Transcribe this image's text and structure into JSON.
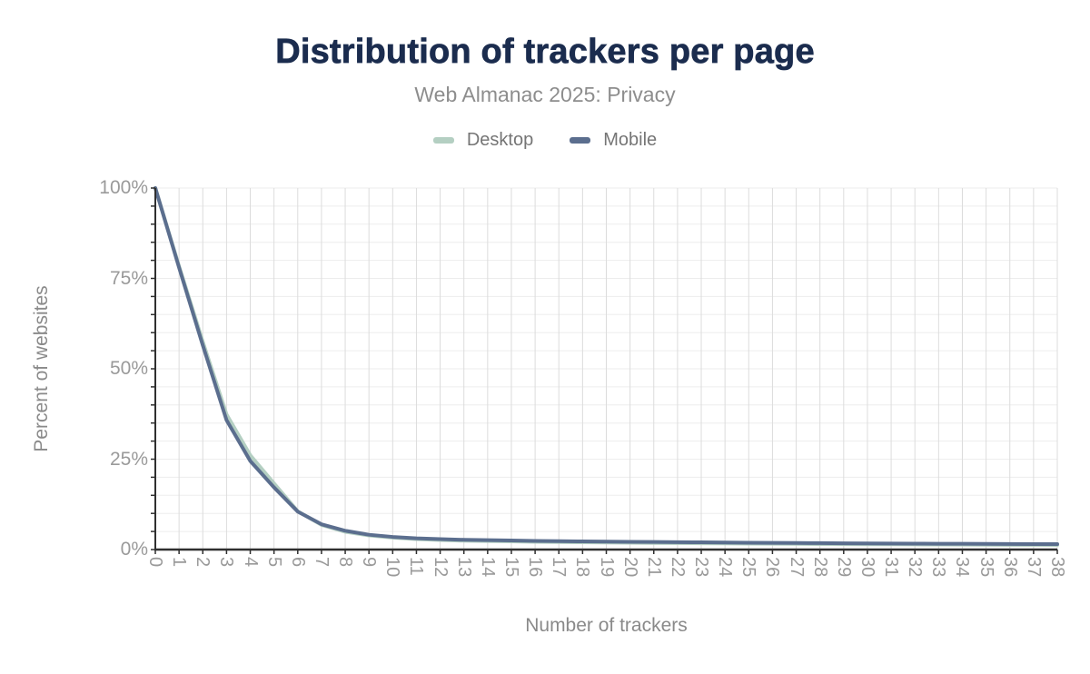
{
  "chart": {
    "title": "Distribution of trackers per page",
    "subtitle": "Web Almanac 2025: Privacy"
  },
  "colors": {
    "title_text": "#1b2c4e",
    "subtitle_text": "#8d8d8d",
    "tick_text": "#9a9a9a",
    "axis_title_text": "#8a8a8a",
    "legend_text": "#757575",
    "axis_line": "#2f2f2f",
    "grid_vertical": "#dcdcdc",
    "grid_horizontal": "#ededed",
    "desktop": "#b4cfc2",
    "mobile": "#5b6e8e",
    "background": "#ffffff"
  },
  "chart_data": {
    "type": "line",
    "title": "Distribution of trackers per page",
    "subtitle": "Web Almanac 2025: Privacy",
    "xlabel": "Number of trackers",
    "ylabel": "Percent of websites",
    "legend_position": "top",
    "grid": {
      "vertical_every_x": 1,
      "horizontal_every_percent": 5
    },
    "ylim": [
      0,
      100
    ],
    "y_ticks": [
      {
        "value": 0,
        "label": "0%"
      },
      {
        "value": 25,
        "label": "25%"
      },
      {
        "value": 50,
        "label": "50%"
      },
      {
        "value": 75,
        "label": "75%"
      },
      {
        "value": 100,
        "label": "100%"
      }
    ],
    "x": [
      0,
      1,
      2,
      3,
      4,
      5,
      6,
      7,
      8,
      9,
      10,
      11,
      12,
      13,
      14,
      15,
      16,
      17,
      18,
      19,
      20,
      21,
      22,
      23,
      24,
      25,
      26,
      27,
      28,
      29,
      30,
      31,
      32,
      33,
      34,
      35,
      36,
      37,
      38
    ],
    "series": [
      {
        "name": "Desktop",
        "color": "#b4cfc2",
        "values": [
          100,
          78.4,
          57.5,
          37.4,
          26.1,
          18.3,
          10.6,
          6.8,
          4.9,
          3.9,
          3.3,
          2.9,
          2.65,
          2.45,
          2.35,
          2.25,
          2.15,
          2.08,
          2.0,
          1.94,
          1.88,
          1.83,
          1.78,
          1.73,
          1.68,
          1.64,
          1.6,
          1.56,
          1.52,
          1.49,
          1.46,
          1.43,
          1.4,
          1.37,
          1.35,
          1.32,
          1.3,
          1.28,
          1.26
        ]
      },
      {
        "name": "Mobile",
        "color": "#5b6e8e",
        "values": [
          100,
          78.0,
          56.5,
          35.8,
          24.5,
          17.2,
          10.5,
          7.0,
          5.2,
          4.1,
          3.5,
          3.1,
          2.9,
          2.7,
          2.6,
          2.5,
          2.4,
          2.33,
          2.26,
          2.2,
          2.14,
          2.09,
          2.04,
          2.0,
          1.95,
          1.9,
          1.86,
          1.82,
          1.78,
          1.74,
          1.7,
          1.67,
          1.64,
          1.61,
          1.59,
          1.57,
          1.55,
          1.52,
          1.5
        ]
      }
    ]
  }
}
